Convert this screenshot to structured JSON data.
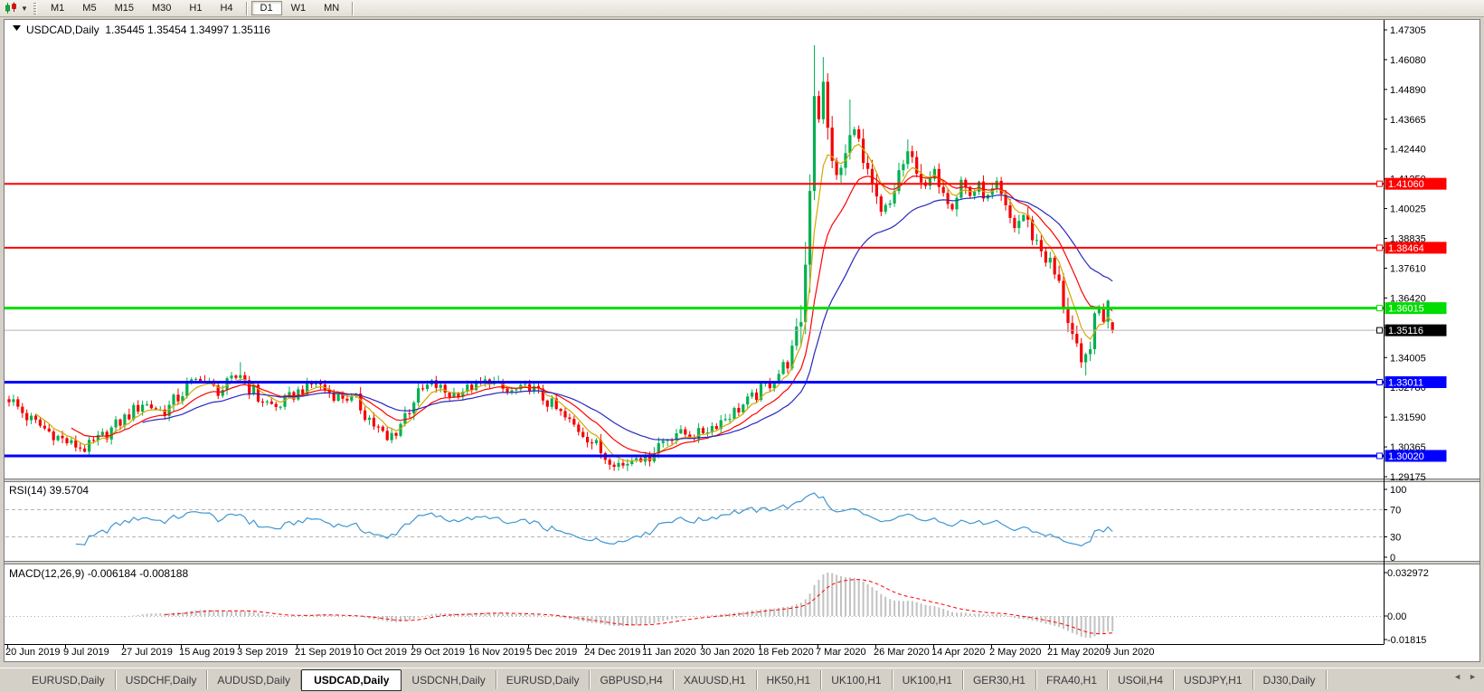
{
  "toolbar": {
    "chart_icon": "candlestick-chart-icon",
    "timeframes": [
      "M1",
      "M5",
      "M15",
      "M30",
      "H1",
      "H4",
      "D1",
      "W1",
      "MN"
    ],
    "active_timeframe": "D1",
    "separators_after": [
      "H4",
      "MN"
    ]
  },
  "chart_header": {
    "symbol_period": "USDCAD,Daily",
    "open": "1.35445",
    "high": "1.35454",
    "low": "1.34997",
    "close": "1.35116",
    "display": "USDCAD,Daily  1.35445 1.35454 1.34997 1.35116"
  },
  "price_axis": {
    "ticks": [
      "1.47305",
      "1.46080",
      "1.44890",
      "1.43665",
      "1.42440",
      "1.41250",
      "1.40025",
      "1.38835",
      "1.37610",
      "1.36420",
      "1.35195",
      "1.34005",
      "1.32780",
      "1.31590",
      "1.30365",
      "1.29175"
    ]
  },
  "levels": [
    {
      "value": 1.4106,
      "label": "1.41060",
      "color": "#ff0000",
      "width": 2
    },
    {
      "value": 1.38464,
      "label": "1.38464",
      "color": "#ff0000",
      "width": 2
    },
    {
      "value": 1.36015,
      "label": "1.36015",
      "color": "#00dd00",
      "width": 3
    },
    {
      "value": 1.33011,
      "label": "1.33011",
      "color": "#0000ff",
      "width": 3
    },
    {
      "value": 1.3002,
      "label": "1.30020",
      "color": "#0000ff",
      "width": 3
    }
  ],
  "current_price": {
    "value": 1.35116,
    "label": "1.35116",
    "badge_color": "#000000",
    "line_color": "#b4b4b4"
  },
  "time_axis": {
    "dates": [
      "20 Jun 2019",
      "9 Jul 2019",
      "27 Jul 2019",
      "15 Aug 2019",
      "3 Sep 2019",
      "21 Sep 2019",
      "10 Oct 2019",
      "29 Oct 2019",
      "16 Nov 2019",
      "5 Dec 2019",
      "24 Dec 2019",
      "11 Jan 2020",
      "30 Jan 2020",
      "18 Feb 2020",
      "7 Mar 2020",
      "26 Mar 2020",
      "14 Apr 2020",
      "2 May 2020",
      "21 May 2020",
      "9 Jun 2020"
    ]
  },
  "rsi_pane": {
    "label": "RSI(14) 39.5704",
    "period": 14,
    "value": "39.5704",
    "ticks": [
      "100",
      "70",
      "30",
      "0"
    ],
    "dashed_levels": [
      70,
      30
    ],
    "line_color": "#3e96d2"
  },
  "macd_pane": {
    "label": "MACD(12,26,9) -0.006184 -0.008188",
    "main_value": "-0.006184",
    "signal_value": "-0.008188",
    "ticks": [
      "0.032972",
      "0.00",
      "-0.01815"
    ],
    "histogram_color": "#c2c2c2",
    "signal_color": "#ff0000"
  },
  "tab_bar": {
    "tabs": [
      "EURUSD,Daily",
      "USDCHF,Daily",
      "AUDUSD,Daily",
      "USDCAD,Daily",
      "USDCNH,Daily",
      "EURUSD,Daily",
      "GBPUSD,H4",
      "XAUUSD,H1",
      "HK50,H1",
      "UK100,H1",
      "UK100,H1",
      "GER30,H1",
      "FRA40,H1",
      "USOil,H4",
      "USDJPY,H1",
      "DJ30,Daily"
    ],
    "active_index": 3,
    "scroll_left": "◄",
    "scroll_right": "►"
  },
  "chart_data": {
    "type": "candlestick",
    "symbol": "USDCAD",
    "period": "Daily",
    "bar_count": 249,
    "y_axis": {
      "min": 1.29175,
      "max": 1.47305
    },
    "last_bar": {
      "open": 1.35445,
      "high": 1.35454,
      "low": 1.34997,
      "close": 1.35116
    },
    "up_color": "#00b050",
    "down_color": "#f40000",
    "close_keypoints": [
      [
        0,
        1.3235
      ],
      [
        4,
        1.316
      ],
      [
        9,
        1.31
      ],
      [
        13,
        1.3058
      ],
      [
        17,
        1.3028
      ],
      [
        21,
        1.308
      ],
      [
        26,
        1.3155
      ],
      [
        30,
        1.3215
      ],
      [
        35,
        1.318
      ],
      [
        40,
        1.328
      ],
      [
        43,
        1.332
      ],
      [
        47,
        1.3258
      ],
      [
        52,
        1.3335
      ],
      [
        56,
        1.3235
      ],
      [
        60,
        1.32
      ],
      [
        65,
        1.3262
      ],
      [
        69,
        1.33
      ],
      [
        73,
        1.3248
      ],
      [
        78,
        1.3228
      ],
      [
        82,
        1.313
      ],
      [
        85,
        1.3062
      ],
      [
        88,
        1.3135
      ],
      [
        91,
        1.3235
      ],
      [
        95,
        1.3298
      ],
      [
        99,
        1.3248
      ],
      [
        104,
        1.3282
      ],
      [
        108,
        1.3308
      ],
      [
        112,
        1.3258
      ],
      [
        117,
        1.3282
      ],
      [
        121,
        1.3222
      ],
      [
        125,
        1.3152
      ],
      [
        130,
        1.3082
      ],
      [
        134,
        1.2998
      ],
      [
        138,
        1.2962
      ],
      [
        141,
        1.3008
      ],
      [
        143,
        1.2988
      ],
      [
        146,
        1.3052
      ],
      [
        150,
        1.3098
      ],
      [
        154,
        1.3082
      ],
      [
        158,
        1.3122
      ],
      [
        163,
        1.3182
      ],
      [
        167,
        1.3235
      ],
      [
        171,
        1.33
      ],
      [
        174,
        1.336
      ],
      [
        176,
        1.342
      ],
      [
        178,
        1.356
      ],
      [
        179,
        1.378
      ],
      [
        180,
        1.41
      ],
      [
        181,
        1.448
      ],
      [
        182,
        1.438
      ],
      [
        183,
        1.45
      ],
      [
        184,
        1.432
      ],
      [
        186,
        1.412
      ],
      [
        188,
        1.422
      ],
      [
        190,
        1.435
      ],
      [
        192,
        1.418
      ],
      [
        194,
        1.408
      ],
      [
        196,
        1.398
      ],
      [
        198,
        1.402
      ],
      [
        200,
        1.415
      ],
      [
        202,
        1.422
      ],
      [
        204,
        1.418
      ],
      [
        206,
        1.408
      ],
      [
        208,
        1.415
      ],
      [
        210,
        1.41
      ],
      [
        212,
        1.402
      ],
      [
        214,
        1.412
      ],
      [
        216,
        1.406
      ],
      [
        218,
        1.41
      ],
      [
        220,
        1.405
      ],
      [
        222,
        1.409
      ],
      [
        224,
        1.399
      ],
      [
        226,
        1.393
      ],
      [
        228,
        1.398
      ],
      [
        230,
        1.39
      ],
      [
        232,
        1.384
      ],
      [
        234,
        1.378
      ],
      [
        236,
        1.369
      ],
      [
        238,
        1.356
      ],
      [
        240,
        1.342
      ],
      [
        241,
        1.336
      ],
      [
        242,
        1.3395
      ],
      [
        243,
        1.347
      ],
      [
        244,
        1.354
      ],
      [
        245,
        1.36
      ],
      [
        246,
        1.356
      ],
      [
        247,
        1.3615
      ],
      [
        248,
        1.35116
      ]
    ],
    "wick_overrides": {
      "17": {
        "low": 1.3016
      },
      "52": {
        "high": 1.3382
      },
      "138": {
        "low": 1.2951
      },
      "181": {
        "high": 1.4668
      },
      "183": {
        "high": 1.462
      },
      "189": {
        "high": 1.4448
      },
      "202": {
        "high": 1.4286
      },
      "242": {
        "low": 1.3328
      }
    },
    "moving_averages": [
      {
        "period": 6,
        "color": "#d2a800"
      },
      {
        "period": 14,
        "color": "#ff0000"
      },
      {
        "period": 30,
        "color": "#2828bE"
      }
    ],
    "indicators": {
      "rsi": {
        "period": 14,
        "current": 39.5704
      },
      "macd": {
        "fast": 12,
        "slow": 26,
        "signal": 9,
        "current_main": -0.006184,
        "current_signal": -0.008188,
        "scale_max": 0.032972,
        "scale_min": -0.018154
      }
    }
  }
}
